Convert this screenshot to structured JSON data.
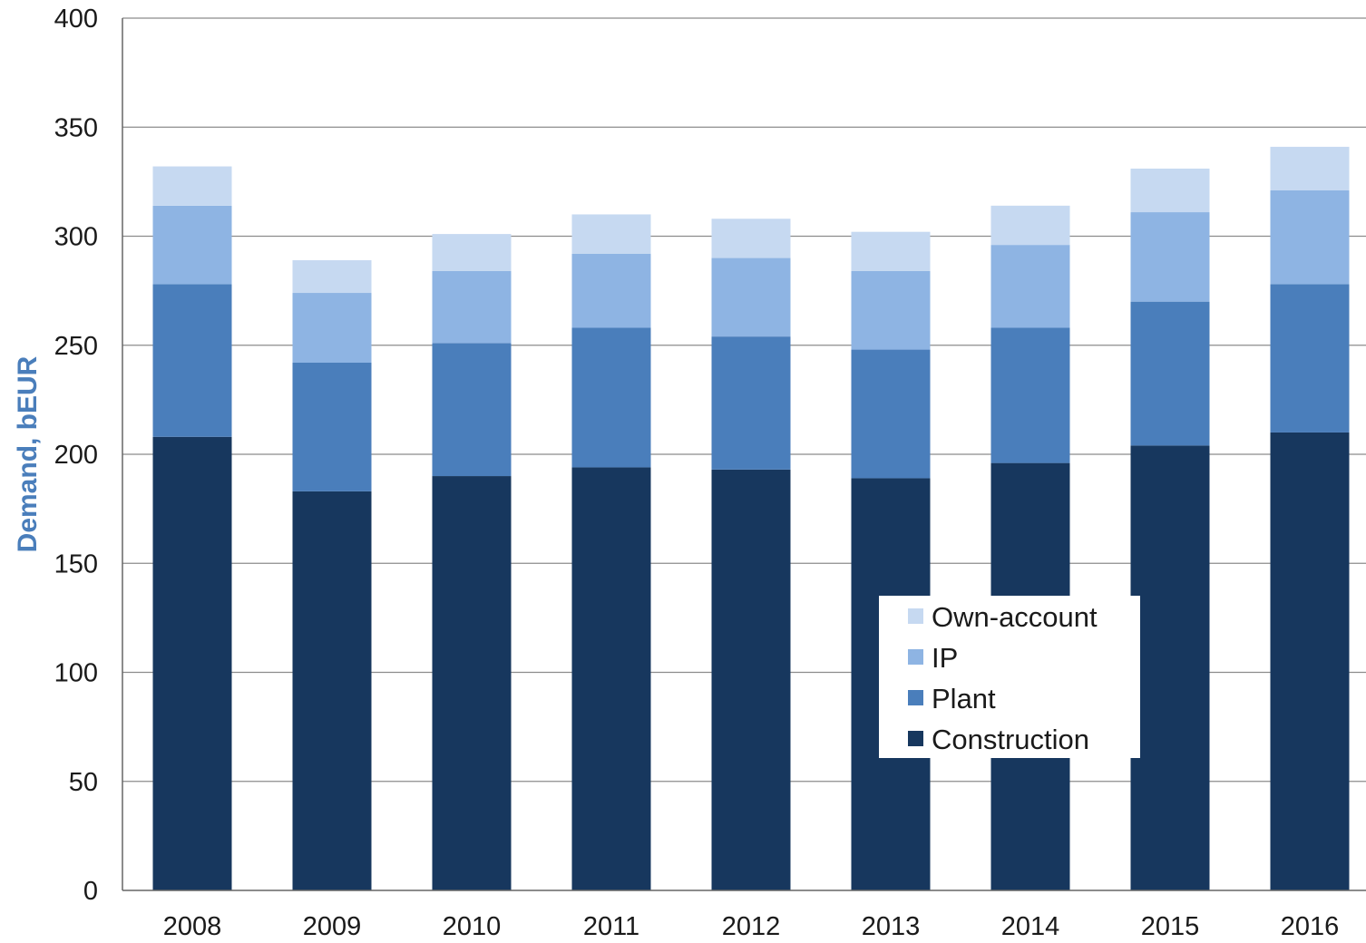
{
  "chart_data": {
    "type": "bar",
    "stacked": true,
    "categories": [
      "2008",
      "2009",
      "2010",
      "2011",
      "2012",
      "2013",
      "2014",
      "2015",
      "2016"
    ],
    "series": [
      {
        "name": "Construction",
        "color": "#17375e",
        "values": [
          208,
          183,
          190,
          194,
          193,
          189,
          196,
          204,
          210
        ]
      },
      {
        "name": "Plant",
        "color": "#4a7ebb",
        "values": [
          70,
          59,
          61,
          64,
          61,
          59,
          62,
          66,
          68
        ]
      },
      {
        "name": "IP",
        "color": "#8eb4e3",
        "values": [
          36,
          32,
          33,
          34,
          36,
          36,
          38,
          41,
          43
        ]
      },
      {
        "name": "Own-account",
        "color": "#c6d9f1",
        "values": [
          18,
          15,
          17,
          18,
          18,
          18,
          18,
          20,
          20
        ]
      }
    ],
    "ylabel": "Demand, bEUR",
    "xlabel": "",
    "ylim": [
      0,
      400
    ],
    "yticks": [
      "0",
      "50",
      "100",
      "150",
      "200",
      "250",
      "300",
      "350",
      "400"
    ],
    "grid": true,
    "legend_position": "bottom-right inside plot",
    "legend_order": [
      "Own-account",
      "IP",
      "Plant",
      "Construction"
    ]
  }
}
